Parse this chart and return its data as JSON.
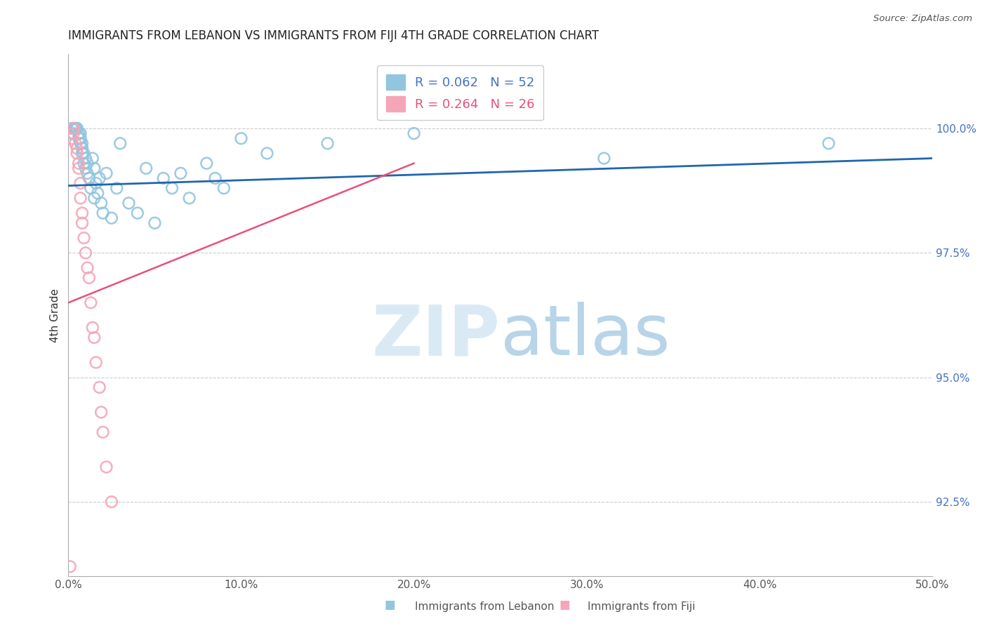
{
  "title": "IMMIGRANTS FROM LEBANON VS IMMIGRANTS FROM FIJI 4TH GRADE CORRELATION CHART",
  "source": "Source: ZipAtlas.com",
  "xlabel_label": "Immigrants from Lebanon",
  "ylabel_label": "4th Grade",
  "xlabel2_label": "Immigrants from Fiji",
  "xlim": [
    0.0,
    0.5
  ],
  "ylim": [
    91.0,
    101.5
  ],
  "xtick_labels": [
    "0.0%",
    "10.0%",
    "20.0%",
    "30.0%",
    "40.0%",
    "50.0%"
  ],
  "xtick_values": [
    0.0,
    0.1,
    0.2,
    0.3,
    0.4,
    0.5
  ],
  "ytick_labels": [
    "92.5%",
    "95.0%",
    "97.5%",
    "100.0%"
  ],
  "ytick_values": [
    92.5,
    95.0,
    97.5,
    100.0
  ],
  "legend_r1": "R = 0.062",
  "legend_n1": "N = 52",
  "legend_r2": "R = 0.264",
  "legend_n2": "N = 26",
  "color_blue": "#92c5de",
  "color_pink": "#f4a6b8",
  "line_color_blue": "#2166ac",
  "line_color_pink": "#e8507a",
  "watermark_zip": "ZIP",
  "watermark_atlas": "atlas",
  "watermark_color": "#daeaf5",
  "blue_scatter_x": [
    0.001,
    0.002,
    0.003,
    0.004,
    0.004,
    0.005,
    0.005,
    0.006,
    0.006,
    0.007,
    0.007,
    0.007,
    0.008,
    0.008,
    0.008,
    0.009,
    0.009,
    0.01,
    0.01,
    0.011,
    0.011,
    0.012,
    0.013,
    0.014,
    0.015,
    0.015,
    0.016,
    0.017,
    0.018,
    0.019,
    0.02,
    0.022,
    0.025,
    0.028,
    0.03,
    0.035,
    0.04,
    0.045,
    0.05,
    0.055,
    0.06,
    0.065,
    0.07,
    0.08,
    0.085,
    0.09,
    0.1,
    0.115,
    0.15,
    0.2,
    0.31,
    0.44
  ],
  "blue_scatter_y": [
    99.9,
    100.0,
    100.0,
    100.0,
    100.0,
    100.0,
    100.0,
    99.8,
    99.9,
    99.7,
    99.8,
    99.9,
    99.5,
    99.6,
    99.7,
    99.3,
    99.5,
    99.2,
    99.4,
    99.1,
    99.3,
    99.0,
    98.8,
    99.4,
    98.6,
    99.2,
    98.9,
    98.7,
    99.0,
    98.5,
    98.3,
    99.1,
    98.2,
    98.8,
    99.7,
    98.5,
    98.3,
    99.2,
    98.1,
    99.0,
    98.8,
    99.1,
    98.6,
    99.3,
    99.0,
    98.8,
    99.8,
    99.5,
    99.7,
    99.9,
    99.4,
    99.7
  ],
  "pink_scatter_x": [
    0.001,
    0.002,
    0.003,
    0.003,
    0.004,
    0.005,
    0.005,
    0.006,
    0.006,
    0.007,
    0.007,
    0.008,
    0.008,
    0.009,
    0.01,
    0.011,
    0.012,
    0.013,
    0.014,
    0.015,
    0.016,
    0.018,
    0.019,
    0.02,
    0.022,
    0.025
  ],
  "pink_scatter_y": [
    91.2,
    99.8,
    99.9,
    100.0,
    99.7,
    99.6,
    99.5,
    99.3,
    99.2,
    98.9,
    98.6,
    98.3,
    98.1,
    97.8,
    97.5,
    97.2,
    97.0,
    96.5,
    96.0,
    95.8,
    95.3,
    94.8,
    94.3,
    93.9,
    93.2,
    92.5
  ],
  "blue_line_x": [
    0.0,
    0.5
  ],
  "blue_line_y": [
    98.85,
    99.4
  ],
  "pink_line_x": [
    0.0,
    0.2
  ],
  "pink_line_y": [
    96.5,
    99.3
  ]
}
